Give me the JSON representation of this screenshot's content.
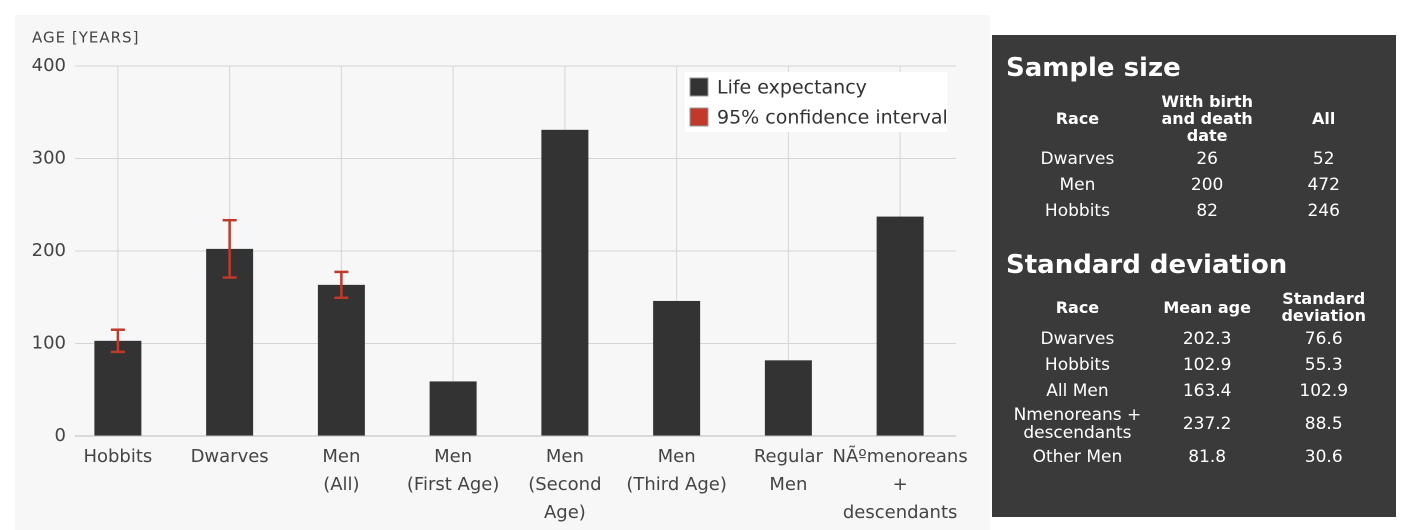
{
  "chart_data": {
    "type": "bar",
    "y_label": "AGE [YEARS]",
    "categories": [
      "Hobbits",
      "Dwarves",
      "Men\n(All)",
      "Men\n(First Age)",
      "Men\n(Second\nAge)",
      "Men\n(Third Age)",
      "Regular\nMen",
      "NÃºmenoreans\n+\ndescendants"
    ],
    "series": [
      {
        "name": "Life expectancy",
        "color": "#333333",
        "values": [
          102.9,
          202.3,
          163.4,
          59,
          331,
          146,
          81.8,
          237.2
        ],
        "errors": [
          12,
          31,
          14,
          null,
          null,
          null,
          null,
          null
        ]
      }
    ],
    "error_name": "95% confidence interval",
    "error_color": "#c0392b",
    "ylim": [
      0,
      400
    ],
    "yticks": [
      0,
      100,
      200,
      300,
      400
    ],
    "grid": true,
    "legend": "top-right"
  },
  "sample_size": {
    "title": "Sample size",
    "header": [
      "Race",
      "With birth and death date",
      "All"
    ],
    "rows": [
      [
        "Dwarves",
        "26",
        "52"
      ],
      [
        "Men",
        "200",
        "472"
      ],
      [
        "Hobbits",
        "82",
        "246"
      ]
    ]
  },
  "standard_deviation": {
    "title": "Standard deviation",
    "header": [
      "Race",
      "Mean age",
      "Standard deviation"
    ],
    "rows": [
      [
        "Dwarves",
        "202.3",
        "76.6"
      ],
      [
        "Hobbits",
        "102.9",
        "55.3"
      ],
      [
        "All Men",
        "163.4",
        "102.9"
      ],
      [
        "Nmenoreans + descendants",
        "237.2",
        "88.5"
      ],
      [
        "Other Men",
        "81.8",
        "30.6"
      ]
    ]
  }
}
